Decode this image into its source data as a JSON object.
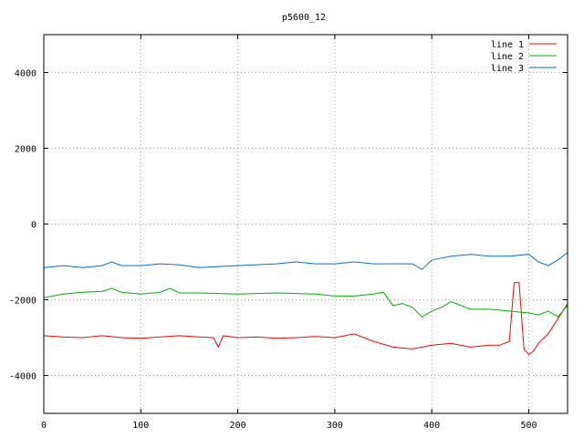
{
  "chart_data": {
    "type": "line",
    "title": "p5600_12",
    "xlabel": "",
    "ylabel": "",
    "xlim": [
      0,
      540
    ],
    "ylim": [
      -5000,
      5000
    ],
    "xticks": [
      0,
      100,
      200,
      300,
      400,
      500
    ],
    "yticks": [
      -4000,
      -2000,
      0,
      2000,
      4000
    ],
    "grid": true,
    "legend_position": "top-right",
    "series": [
      {
        "name": "line 1",
        "color": "#ff0000",
        "x": [
          0,
          20,
          40,
          60,
          80,
          100,
          120,
          140,
          160,
          175,
          180,
          185,
          200,
          220,
          240,
          260,
          280,
          300,
          320,
          340,
          360,
          380,
          400,
          420,
          440,
          460,
          470,
          480,
          485,
          490,
          495,
          500,
          505,
          510,
          520,
          530,
          540
        ],
        "y": [
          -2950,
          -2980,
          -3000,
          -2950,
          -3000,
          -3020,
          -2980,
          -2950,
          -2980,
          -3000,
          -3250,
          -2950,
          -3000,
          -2980,
          -3020,
          -3000,
          -2970,
          -3000,
          -2900,
          -3100,
          -3250,
          -3300,
          -3200,
          -3150,
          -3250,
          -3200,
          -3200,
          -3100,
          -1550,
          -1550,
          -3300,
          -3450,
          -3350,
          -3150,
          -2900,
          -2500,
          -2100
        ]
      },
      {
        "name": "line 2",
        "color": "#00b000",
        "x": [
          0,
          20,
          40,
          60,
          70,
          80,
          100,
          120,
          130,
          140,
          160,
          200,
          240,
          280,
          300,
          320,
          340,
          350,
          360,
          370,
          380,
          390,
          400,
          410,
          420,
          440,
          460,
          480,
          500,
          510,
          520,
          530,
          540
        ],
        "y": [
          -1950,
          -1850,
          -1800,
          -1780,
          -1700,
          -1800,
          -1850,
          -1800,
          -1700,
          -1820,
          -1820,
          -1850,
          -1820,
          -1850,
          -1900,
          -1900,
          -1850,
          -1800,
          -2150,
          -2100,
          -2200,
          -2450,
          -2300,
          -2200,
          -2050,
          -2250,
          -2250,
          -2300,
          -2350,
          -2400,
          -2300,
          -2450,
          -2150
        ]
      },
      {
        "name": "line 3",
        "color": "#0070e0",
        "x": [
          0,
          20,
          40,
          60,
          70,
          80,
          100,
          120,
          140,
          160,
          200,
          240,
          260,
          280,
          300,
          320,
          340,
          360,
          380,
          390,
          400,
          420,
          440,
          460,
          480,
          500,
          510,
          520,
          530,
          540
        ],
        "y": [
          -1150,
          -1100,
          -1150,
          -1100,
          -1000,
          -1100,
          -1100,
          -1050,
          -1080,
          -1150,
          -1100,
          -1050,
          -1000,
          -1050,
          -1050,
          -1000,
          -1050,
          -1050,
          -1050,
          -1200,
          -950,
          -850,
          -800,
          -850,
          -850,
          -800,
          -1000,
          -1100,
          -950,
          -750
        ]
      }
    ]
  }
}
